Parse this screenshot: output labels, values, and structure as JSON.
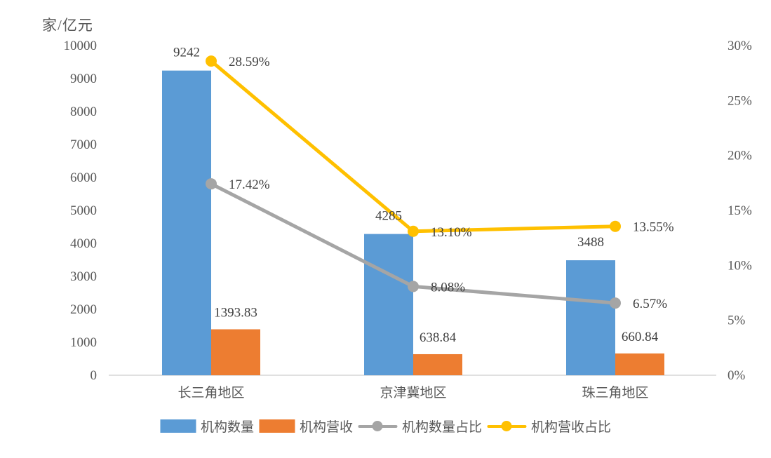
{
  "colors": {
    "bar_blue": "#5B9BD5",
    "bar_orange": "#ED7D31",
    "line_gray": "#A5A5A5",
    "line_yellow": "#FFC000",
    "axis_line": "#D6D6D6",
    "tick_text": "#595959",
    "data_label_text": "#404040"
  },
  "chart_data": {
    "type": "bar",
    "subtype": "combo-bar-line-dual-axis",
    "title": "",
    "categories": [
      "长三角地区",
      "京津冀地区",
      "珠三角地区"
    ],
    "left_axis": {
      "unit": "家/亿元",
      "min": 0,
      "max": 10000,
      "step": 1000,
      "ticks": [
        "0",
        "1000",
        "2000",
        "3000",
        "4000",
        "5000",
        "6000",
        "7000",
        "8000",
        "9000",
        "10000"
      ]
    },
    "right_axis": {
      "min": 0,
      "max": 30,
      "step": 5,
      "ticks": [
        "0%",
        "5%",
        "10%",
        "15%",
        "20%",
        "25%",
        "30%"
      ]
    },
    "grid": false,
    "legend_position": "bottom",
    "series": [
      {
        "key": "institution-count",
        "name": "机构数量",
        "type": "bar",
        "axis": "left",
        "color": "#5B9BD5",
        "values": [
          9242,
          4285,
          3488
        ],
        "labels": [
          "9242",
          "4285",
          "3488"
        ]
      },
      {
        "key": "institution-revenue",
        "name": "机构营收",
        "type": "bar",
        "axis": "left",
        "color": "#ED7D31",
        "values": [
          1393.83,
          638.84,
          660.84
        ],
        "labels": [
          "1393.83",
          "638.84",
          "660.84"
        ]
      },
      {
        "key": "institution-count-share",
        "name": "机构数量占比",
        "type": "line",
        "axis": "right",
        "color": "#A5A5A5",
        "values": [
          17.42,
          8.08,
          6.57
        ],
        "labels": [
          "17.42%",
          "8.08%",
          "6.57%"
        ]
      },
      {
        "key": "institution-revenue-share",
        "name": "机构营收占比",
        "type": "line",
        "axis": "right",
        "color": "#FFC000",
        "values": [
          28.59,
          13.1,
          13.55
        ],
        "labels": [
          "28.59%",
          "13.10%",
          "13.55%"
        ]
      }
    ]
  }
}
